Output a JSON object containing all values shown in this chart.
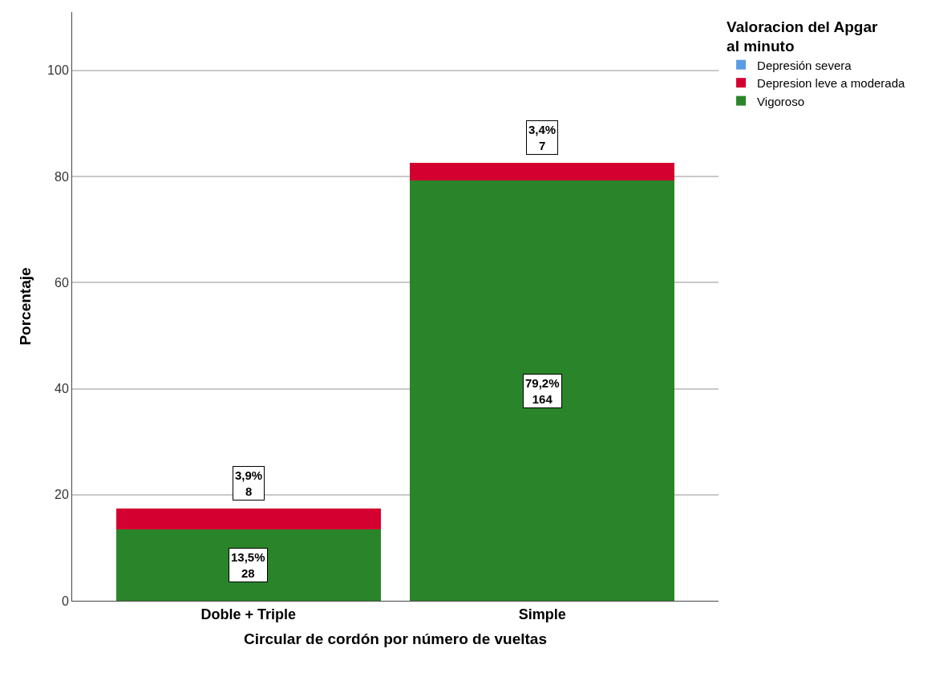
{
  "chart_data": {
    "type": "bar",
    "stacked": true,
    "xlabel": "Circular de cordón por número de vueltas",
    "ylabel": "Porcentaje",
    "legend_title": "Valoracion del Apgar al minuto",
    "categories": [
      "Doble + Triple",
      "Simple"
    ],
    "series": [
      {
        "name": "Vigoroso",
        "color": "#2a852a",
        "values": [
          13.5,
          79.2
        ],
        "value_labels": [
          "13,5%\n28",
          "79,2%\n164"
        ]
      },
      {
        "name": "Depresion leve a moderada",
        "color": "#d40030",
        "values": [
          3.9,
          3.4
        ],
        "value_labels": [
          "3,9%\n8",
          "3,4%\n7"
        ]
      },
      {
        "name": "Depresión severa",
        "color": "#5b9be6",
        "values": [
          null,
          null
        ]
      }
    ],
    "ylim": [
      0,
      111
    ],
    "yticks": [
      0,
      20,
      40,
      60,
      80,
      100
    ],
    "grid": "y",
    "legend": "top right"
  }
}
